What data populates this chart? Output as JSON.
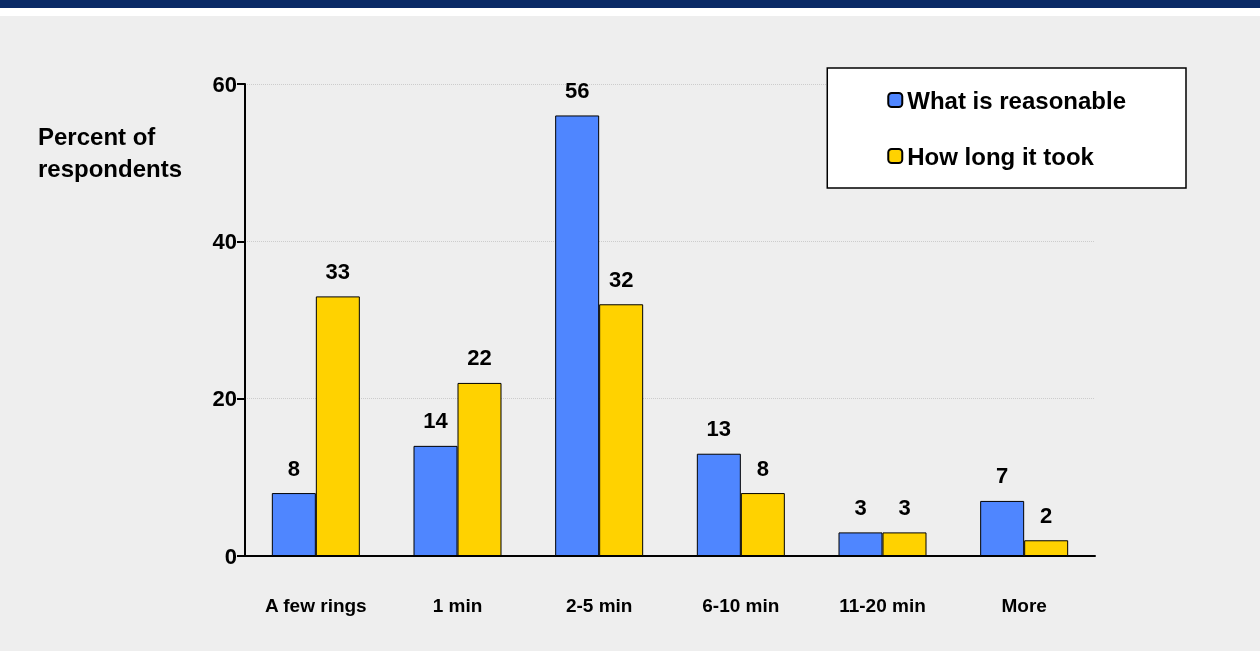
{
  "chart_data": {
    "type": "bar",
    "ylabel": "Percent of respondents",
    "categories": [
      "A few rings",
      "1 min",
      "2-5 min",
      "6-10 min",
      "11-20 min",
      "More"
    ],
    "series": [
      {
        "name": "What is reasonable",
        "color": "#4f86ff",
        "values": [
          8,
          14,
          56,
          13,
          3,
          7
        ]
      },
      {
        "name": "How long it took",
        "color": "#ffd200",
        "values": [
          33,
          22,
          32,
          8,
          3,
          2
        ]
      }
    ],
    "ylim": [
      0,
      60
    ],
    "yticks": [
      0,
      20,
      40,
      60
    ],
    "grid": "y",
    "legend": "top right",
    "data_labels": true
  }
}
